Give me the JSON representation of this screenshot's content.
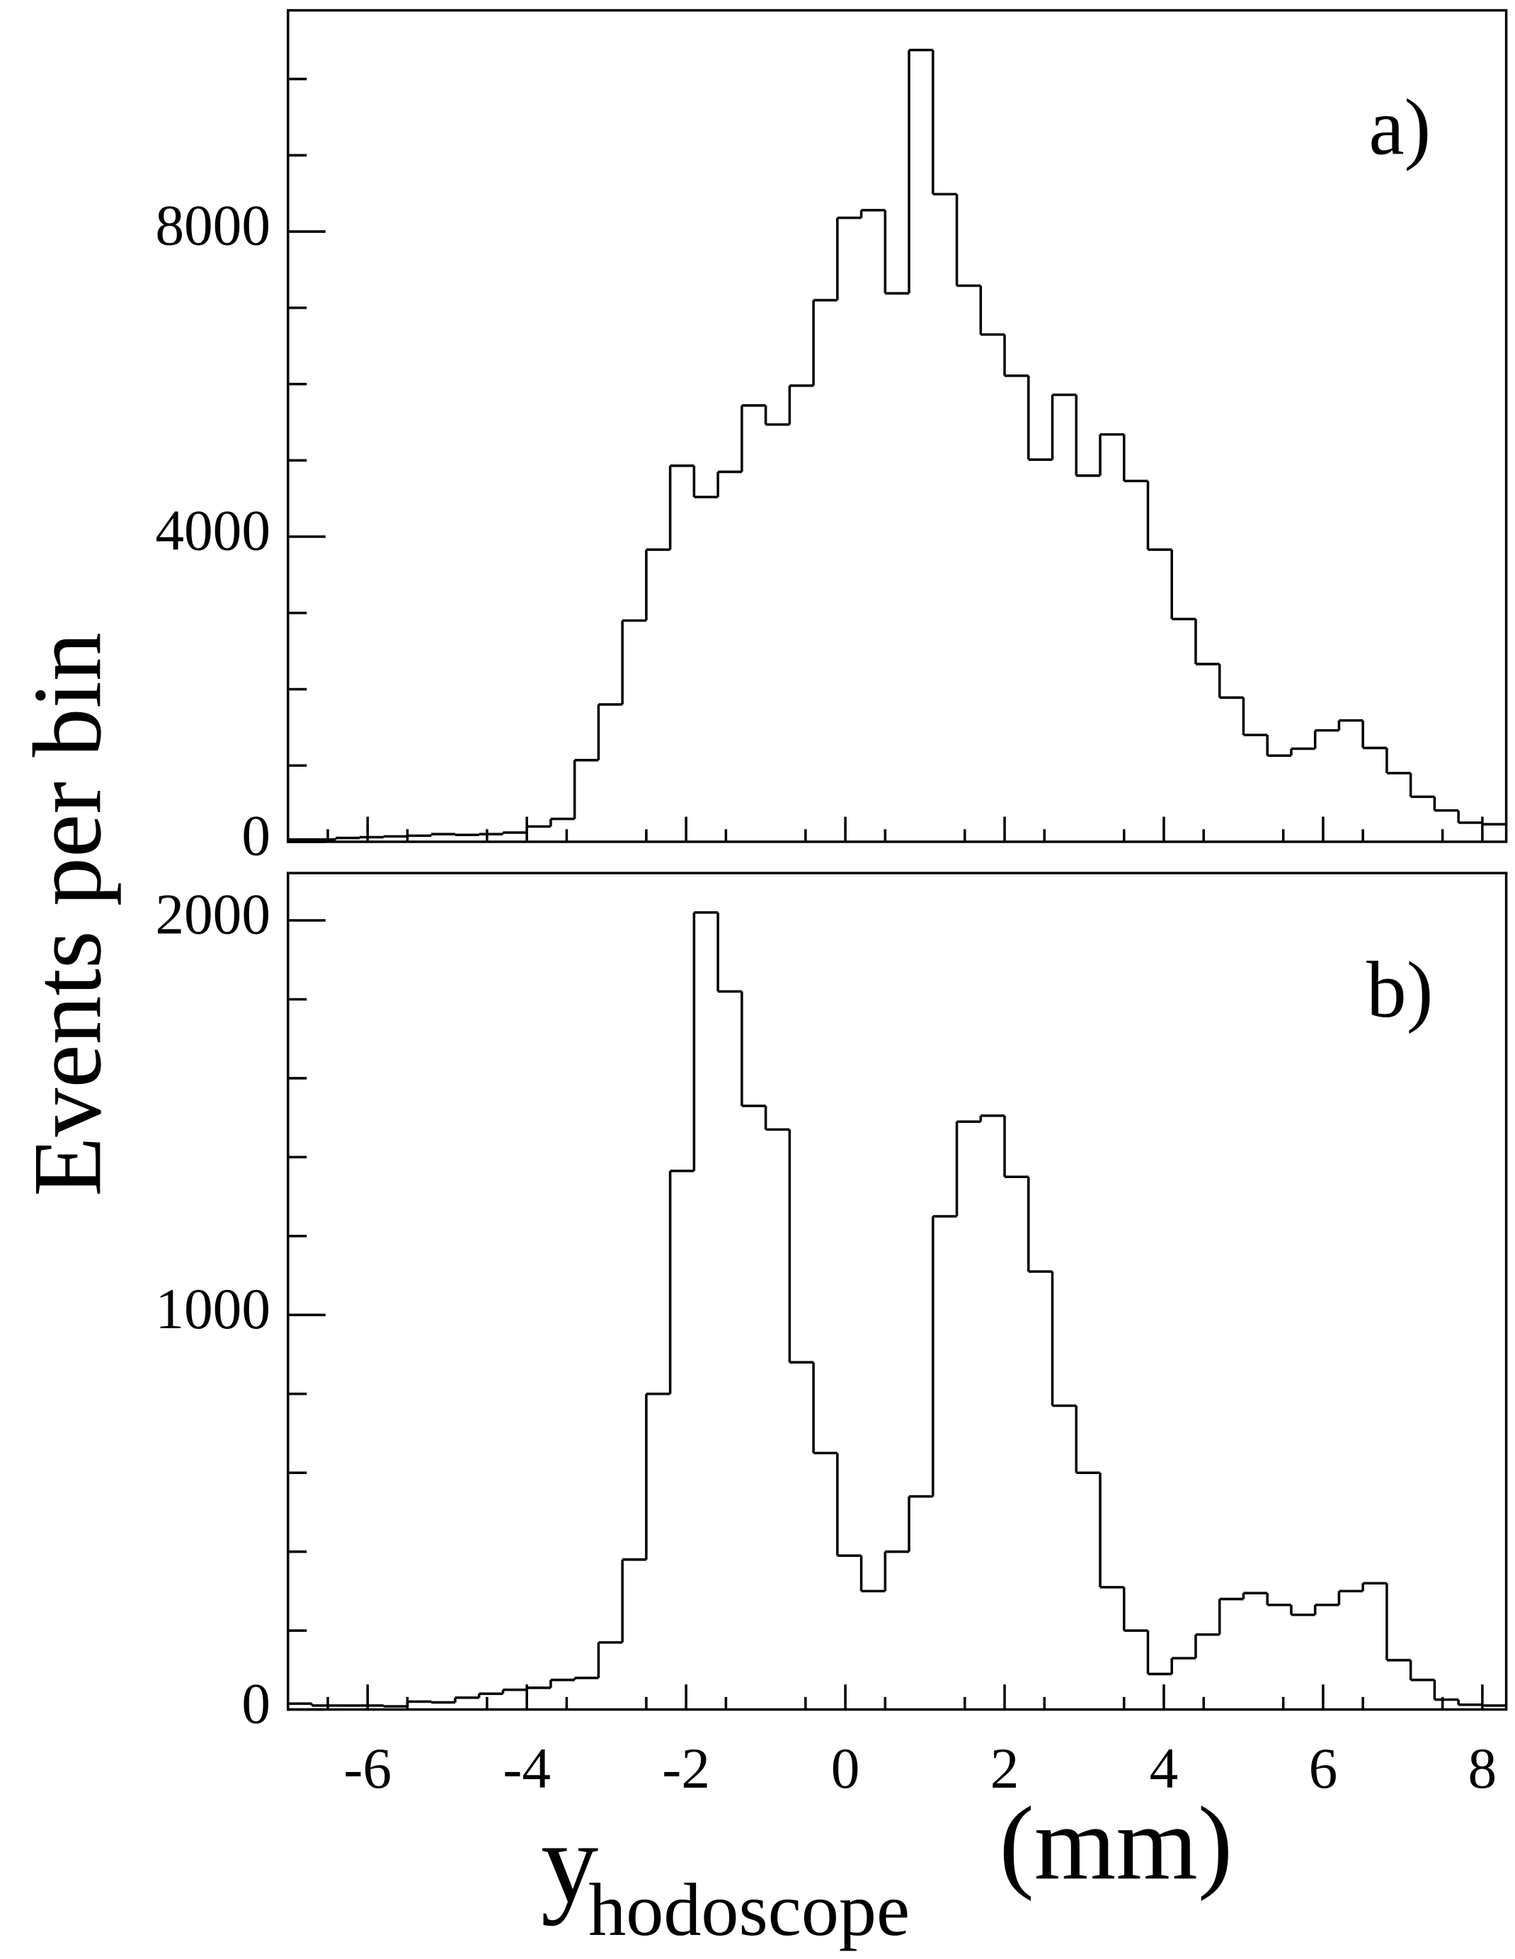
{
  "axis_labels": {
    "y": "Events per bin",
    "x_main": "y",
    "x_subscript": "hodoscope",
    "x_unit": "(mm)"
  },
  "chart_data": [
    {
      "type": "histogram",
      "annotation": "a)",
      "color": "#000000",
      "bins": [
        -7,
        -6.7,
        -6.4,
        -6.1,
        -5.8,
        -5.5,
        -5.2,
        -4.9,
        -4.6,
        -4.3,
        -4,
        -3.7,
        -3.4,
        -3.1,
        -2.8,
        -2.5,
        -2.2,
        -1.9,
        -1.6,
        -1.3,
        -1,
        -0.7,
        -0.4,
        -0.1,
        0.2,
        0.5,
        0.8,
        1.1,
        1.4,
        1.7,
        2,
        2.3,
        2.6,
        2.9,
        3.2,
        3.5,
        3.8,
        4.1,
        4.4,
        4.7,
        5,
        5.3,
        5.6,
        5.9,
        6.2,
        6.5,
        6.8,
        7.1,
        7.4,
        7.7,
        8,
        8.3
      ],
      "values": [
        30,
        30,
        50,
        60,
        70,
        80,
        100,
        90,
        100,
        120,
        200,
        300,
        1070,
        1800,
        2900,
        3830,
        4930,
        4520,
        4850,
        5720,
        5470,
        5980,
        7100,
        8180,
        8280,
        7190,
        10380,
        8490,
        7290,
        6650,
        6110,
        5010,
        5860,
        4800,
        5340,
        4730,
        3830,
        2920,
        2330,
        1890,
        1400,
        1130,
        1220,
        1460,
        1590,
        1230,
        900,
        590,
        410,
        250,
        230
      ],
      "xlim": [
        -7,
        8.3
      ],
      "xticks": [
        -6,
        -4,
        -2,
        0,
        2,
        4,
        6,
        8
      ],
      "xminorticks": [
        -6.5,
        -5.5,
        -4.5,
        -3.5,
        -2.5,
        -1.5,
        -0.5,
        0.5,
        1.5,
        2.5,
        3.5,
        4.5,
        5.5,
        6.5,
        7.5
      ],
      "ylim": [
        0,
        10900
      ],
      "yticks": [
        0,
        4000,
        8000
      ],
      "yminorticks": [
        1000,
        2000,
        3000,
        5000,
        6000,
        7000,
        9000,
        10000
      ]
    },
    {
      "type": "histogram",
      "annotation": "b)",
      "color": "#000000",
      "bins": [
        -7,
        -6.7,
        -6.4,
        -6.1,
        -5.8,
        -5.5,
        -5.2,
        -4.9,
        -4.6,
        -4.3,
        -4,
        -3.7,
        -3.4,
        -3.1,
        -2.8,
        -2.5,
        -2.2,
        -1.9,
        -1.6,
        -1.3,
        -1,
        -0.7,
        -0.4,
        -0.1,
        0.2,
        0.5,
        0.8,
        1.1,
        1.4,
        1.7,
        2,
        2.3,
        2.6,
        2.9,
        3.2,
        3.5,
        3.8,
        4.1,
        4.4,
        4.7,
        5,
        5.3,
        5.6,
        5.9,
        6.2,
        6.5,
        6.8,
        7.1,
        7.4,
        7.7,
        8,
        8.3
      ],
      "values": [
        15,
        10,
        10,
        10,
        8,
        20,
        18,
        30,
        40,
        50,
        55,
        75,
        80,
        170,
        380,
        800,
        1365,
        2020,
        1820,
        1530,
        1470,
        880,
        650,
        390,
        300,
        400,
        540,
        1250,
        1490,
        1505,
        1350,
        1110,
        770,
        600,
        310,
        200,
        90,
        130,
        190,
        280,
        295,
        265,
        240,
        265,
        300,
        320,
        125,
        75,
        25,
        12,
        10
      ],
      "xlim": [
        -7,
        8.3
      ],
      "xticks": [
        -6,
        -4,
        -2,
        0,
        2,
        4,
        6,
        8
      ],
      "xminorticks": [
        -6.5,
        -5.5,
        -4.5,
        -3.5,
        -2.5,
        -1.5,
        -0.5,
        0.5,
        1.5,
        2.5,
        3.5,
        4.5,
        5.5,
        6.5,
        7.5
      ],
      "ylim": [
        0,
        2120
      ],
      "yticks": [
        0,
        1000,
        2000
      ],
      "yminorticks": [
        200,
        400,
        600,
        800,
        1200,
        1400,
        1600,
        1800
      ],
      "show_xtick_labels": true
    }
  ]
}
